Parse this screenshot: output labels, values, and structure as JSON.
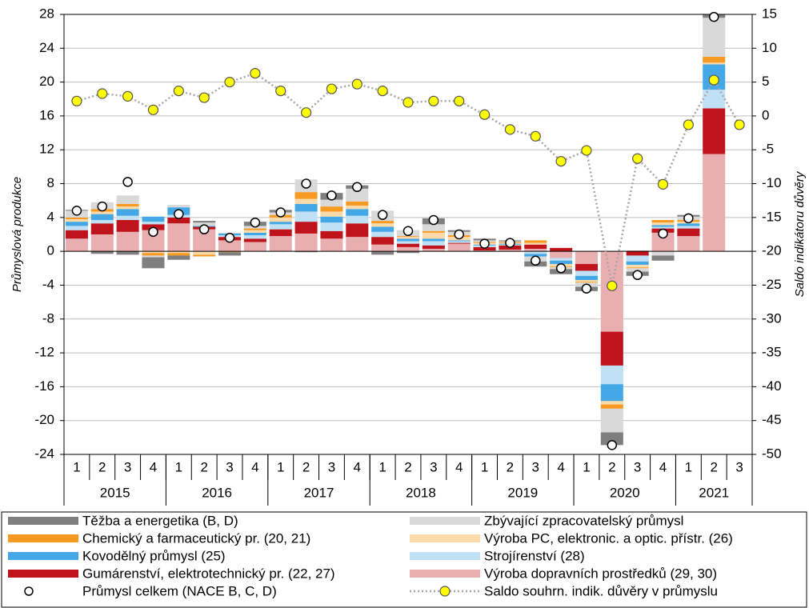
{
  "chart_data": {
    "type": "bar",
    "stacked": true,
    "ylabel": "Průmyslová produkce",
    "y2label": "Saldo indikátoru důvěry",
    "categories": [
      "1",
      "2",
      "3",
      "4",
      "1",
      "2",
      "3",
      "4",
      "1",
      "2",
      "3",
      "4",
      "1",
      "2",
      "3",
      "4",
      "1",
      "2",
      "3",
      "4",
      "1",
      "2",
      "3",
      "4",
      "1",
      "2",
      "3"
    ],
    "year_groups": [
      {
        "label": "2015",
        "quarters": 4
      },
      {
        "label": "2016",
        "quarters": 4
      },
      {
        "label": "2017",
        "quarters": 4
      },
      {
        "label": "2018",
        "quarters": 4
      },
      {
        "label": "2019",
        "quarters": 4
      },
      {
        "label": "2020",
        "quarters": 4
      },
      {
        "label": "2021",
        "quarters": 3
      }
    ],
    "ylim": [
      -24,
      28
    ],
    "yticks": [
      -24,
      -20,
      -16,
      -12,
      -8,
      -4,
      0,
      4,
      8,
      12,
      16,
      20,
      24,
      28
    ],
    "y2lim": [
      -50,
      15
    ],
    "y2ticks": [
      -50,
      -45,
      -40,
      -35,
      -30,
      -25,
      -20,
      -15,
      -10,
      -5,
      0,
      5,
      10,
      15
    ],
    "grid": true,
    "series": [
      {
        "name": "Těžba a energetika (B, D)",
        "color": "#7f7f7f",
        "values": [
          0.1,
          -0.3,
          -0.4,
          -1.3,
          -0.5,
          0.2,
          -0.4,
          0.5,
          0.3,
          -0.1,
          0.8,
          0.4,
          -0.4,
          -0.2,
          0.7,
          0.2,
          0.2,
          0.1,
          -0.6,
          -0.6,
          -0.5,
          -1.5,
          -0.5,
          -0.6,
          0.2,
          0.4,
          null
        ]
      },
      {
        "name": "Chemický a farmaceutický pr. (20, 21)",
        "color": "#f79a24",
        "values": [
          0.2,
          0.3,
          0.3,
          -0.3,
          -0.3,
          -0.2,
          -0.1,
          0.2,
          0.3,
          0.8,
          0.6,
          0.5,
          0.3,
          0.1,
          0.2,
          0.2,
          0.1,
          0.1,
          0.3,
          -0.1,
          -0.1,
          -0.5,
          -0.1,
          0.3,
          0.2,
          0.7,
          null
        ]
      },
      {
        "name": "Kovodělný průmysl (25)",
        "color": "#45a8e6",
        "values": [
          0.5,
          0.7,
          0.8,
          0.6,
          0.9,
          0.1,
          0.2,
          0.3,
          0.3,
          0.9,
          0.7,
          0.8,
          0.6,
          0.3,
          0.3,
          0.1,
          0.1,
          0.1,
          -0.3,
          -0.4,
          -0.5,
          -2.0,
          -0.4,
          0.2,
          0.3,
          3.0,
          null
        ]
      },
      {
        "name": "Gumárenství, elektrotechnický pr. (22, 27)",
        "color": "#c0141c",
        "values": [
          1.0,
          1.3,
          1.4,
          0.7,
          0.7,
          0.3,
          0.4,
          0.4,
          0.8,
          1.4,
          0.9,
          1.6,
          0.9,
          0.4,
          0.4,
          0.1,
          0.4,
          0.5,
          0.5,
          0.4,
          -0.8,
          -4.0,
          -0.5,
          0.5,
          0.9,
          5.4,
          null
        ]
      },
      {
        "name": "Zbývající zpracovatelský průmysl",
        "color": "#d9d9d9",
        "values": [
          0.8,
          0.8,
          1.0,
          -0.2,
          0.3,
          0.4,
          0.1,
          0.3,
          0.3,
          1.5,
          0.8,
          1.5,
          1.2,
          0.7,
          0.8,
          0.4,
          0.2,
          0.1,
          -0.6,
          -0.2,
          -0.5,
          -2.8,
          -0.4,
          -0.5,
          0.4,
          4.6,
          null
        ]
      },
      {
        "name": "Výroba PC, elektronic. a optic. přístr. (26)",
        "color": "#fcd9a8",
        "values": [
          0.3,
          0.3,
          0.3,
          -0.2,
          -0.2,
          -0.4,
          0.0,
          0.3,
          0.5,
          0.6,
          0.6,
          0.4,
          0.4,
          0.2,
          0.7,
          0.4,
          0.2,
          0.1,
          0.2,
          -0.3,
          -0.2,
          -0.4,
          -0.3,
          0.3,
          0.2,
          0.2,
          null
        ]
      },
      {
        "name": "Strojírenství (28)",
        "color": "#bfe0f5",
        "values": [
          0.5,
          0.4,
          0.5,
          0.3,
          0.3,
          0.0,
          0.2,
          0.4,
          0.6,
          1.2,
          1.0,
          0.9,
          0.6,
          0.3,
          0.5,
          0.2,
          0.2,
          0.1,
          -0.3,
          -0.3,
          -0.6,
          -2.2,
          -0.7,
          0.2,
          0.3,
          2.2,
          null
        ]
      },
      {
        "name": "Výroba dopravních prostředků (29, 30)",
        "color": "#e8aeb0",
        "values": [
          1.5,
          2.0,
          2.3,
          2.5,
          3.3,
          2.6,
          1.3,
          1.1,
          1.8,
          2.1,
          1.5,
          1.7,
          0.8,
          0.5,
          0.3,
          0.9,
          0.1,
          0.2,
          0.3,
          -0.8,
          -1.5,
          -9.5,
          0.1,
          2.2,
          1.8,
          11.5,
          null
        ]
      },
      {
        "name": "Průmysl celkem (NACE B, C, D)",
        "type": "scatter",
        "color": "#ffffff",
        "values": [
          4.8,
          5.3,
          8.2,
          2.3,
          4.4,
          2.6,
          1.6,
          3.4,
          4.6,
          8.0,
          6.6,
          7.6,
          4.3,
          2.4,
          3.7,
          2.0,
          0.9,
          1.0,
          -1.1,
          -2.0,
          -4.4,
          -22.9,
          -2.8,
          2.1,
          3.9,
          27.7,
          null
        ]
      },
      {
        "name": "Saldo souhrn. indik. důvěry v průmyslu",
        "type": "line",
        "axis": "y2",
        "color": "#ffff00",
        "values": [
          2.2,
          3.3,
          2.9,
          0.9,
          3.7,
          2.7,
          5.0,
          6.3,
          3.7,
          0.5,
          4.0,
          4.7,
          3.7,
          2.0,
          2.2,
          2.2,
          0.2,
          -2.0,
          -3.0,
          -6.7,
          -5.1,
          -25.1,
          -6.3,
          -10.1,
          -1.3,
          5.3,
          -1.3
        ]
      }
    ]
  }
}
